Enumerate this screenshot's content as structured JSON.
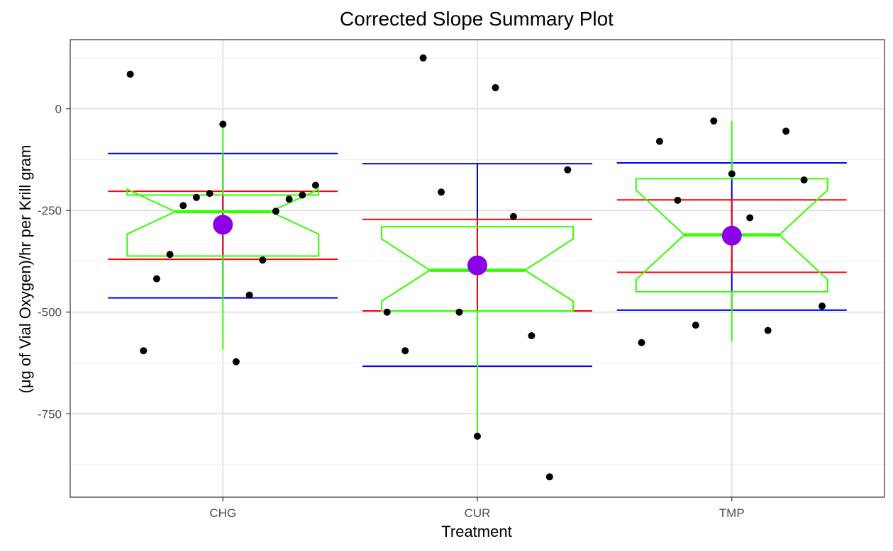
{
  "chart_data": {
    "type": "scatter",
    "title": "Corrected Slope Summary Plot",
    "xlabel": "Treatment",
    "ylabel": "(μg of Vial Oxygen)/hr per Krill gram",
    "categories": [
      "CHG",
      "CUR",
      "TMP"
    ],
    "y_ticks": [
      0,
      -250,
      -500,
      -750
    ],
    "y_tick_labels": [
      "0",
      "-250",
      "-500",
      "-750"
    ],
    "ylim": [
      -955,
      170
    ],
    "grid": true,
    "legend": "none",
    "colors": {
      "points": "#000000",
      "mean": "#8b00e6",
      "boxplot": "#33ff00",
      "sd_bars": "#ff0000",
      "range_bars": "#0000ff"
    },
    "points": [
      {
        "category": "CHG",
        "values": [
          85,
          -38,
          -188,
          -208,
          -212,
          -218,
          -222,
          -238,
          -252,
          -358,
          -372,
          -418,
          -458,
          -595,
          -622
        ]
      },
      {
        "category": "CUR",
        "values": [
          125,
          52,
          -150,
          -205,
          -265,
          -500,
          -500,
          -558,
          -595,
          -805,
          -905
        ]
      },
      {
        "category": "TMP",
        "values": [
          -30,
          -55,
          -80,
          -160,
          -175,
          -225,
          -268,
          -485,
          -532,
          -545,
          -575
        ]
      }
    ],
    "means": [
      -285,
      -385,
      -312
    ],
    "sd_range": [
      [
        -370,
        -203
      ],
      [
        -497,
        -272
      ],
      [
        -402,
        -224
      ]
    ],
    "outer_range": [
      [
        -465,
        -110
      ],
      [
        -633,
        -135
      ],
      [
        -495,
        -133
      ]
    ],
    "boxplots": [
      {
        "category": "CHG",
        "median": -253,
        "q1": -362,
        "q3": -212,
        "notch_low": -308,
        "notch_high": -198,
        "whisker_low": -592,
        "whisker_high": -38
      },
      {
        "category": "CUR",
        "median": -397,
        "q1": -497,
        "q3": -290,
        "notch_low": -473,
        "notch_high": -320,
        "whisker_low": -803,
        "whisker_high": -290
      },
      {
        "category": "TMP",
        "median": -310,
        "q1": -450,
        "q3": -172,
        "notch_low": -420,
        "notch_high": -200,
        "whisker_low": -572,
        "whisker_high": -30
      }
    ]
  }
}
